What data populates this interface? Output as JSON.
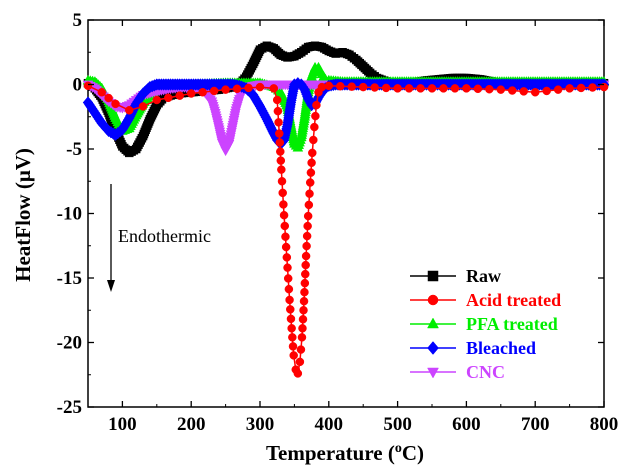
{
  "chart_data": {
    "type": "line",
    "xlabel_main": "Temperature (",
    "xlabel_sup": "o",
    "xlabel_tail": "C)",
    "ylabel": "HeatFlow (μV)",
    "xlim": [
      50,
      800
    ],
    "ylim": [
      -25,
      5
    ],
    "x_ticks": [
      100,
      200,
      300,
      400,
      500,
      600,
      700,
      800
    ],
    "y_ticks": [
      5,
      0,
      -5,
      -10,
      -15,
      -20,
      -25
    ],
    "annotation": "Endothermic",
    "legend_position": "bottom-right",
    "series": [
      {
        "name": "Raw",
        "color": "#000000",
        "marker": "square",
        "x": [
          50,
          60,
          70,
          80,
          90,
          100,
          110,
          120,
          130,
          140,
          150,
          160,
          180,
          200,
          220,
          240,
          260,
          270,
          280,
          290,
          300,
          310,
          320,
          330,
          340,
          350,
          360,
          370,
          380,
          390,
          400,
          410,
          420,
          430,
          440,
          450,
          460,
          470,
          480,
          490,
          500,
          520,
          540,
          560,
          580,
          600,
          620,
          640,
          660,
          680,
          700,
          720,
          740,
          760,
          780,
          800
        ],
        "y": [
          0.1,
          -0.3,
          -1.0,
          -2.2,
          -3.6,
          -4.8,
          -5.3,
          -5.0,
          -4.0,
          -2.7,
          -1.6,
          -1.0,
          -0.7,
          -0.6,
          -0.5,
          -0.4,
          -0.2,
          0.0,
          0.6,
          1.6,
          2.7,
          3.0,
          2.8,
          2.3,
          2.1,
          2.2,
          2.5,
          2.9,
          3.0,
          2.9,
          2.6,
          2.4,
          2.5,
          2.3,
          1.9,
          1.4,
          0.9,
          0.5,
          0.3,
          0.1,
          0.0,
          0.1,
          0.3,
          0.4,
          0.5,
          0.5,
          0.4,
          0.2,
          0.0,
          0.0,
          0.1,
          0.1,
          0.1,
          0.1,
          0.1,
          0.1
        ]
      },
      {
        "name": "Acid treated",
        "color": "#ff0000",
        "marker": "circle",
        "x": [
          50,
          70,
          90,
          110,
          130,
          150,
          200,
          250,
          300,
          320,
          325,
          328,
          331,
          334,
          337,
          340,
          343,
          346,
          349,
          352,
          355,
          358,
          361,
          364,
          367,
          370,
          373,
          376,
          379,
          382,
          385,
          390,
          400,
          450,
          500,
          550,
          600,
          650,
          700,
          750,
          800
        ],
        "y": [
          -0.1,
          -0.6,
          -1.5,
          -2.0,
          -1.7,
          -1.2,
          -0.7,
          -0.4,
          -0.2,
          -0.3,
          -1.2,
          -3.8,
          -6.6,
          -9.3,
          -11.8,
          -14.2,
          -16.7,
          -18.9,
          -21.0,
          -22.1,
          -22.4,
          -21.5,
          -19.6,
          -16.8,
          -13.3,
          -10.2,
          -7.6,
          -5.3,
          -3.3,
          -1.6,
          -0.6,
          -0.2,
          -0.1,
          -0.2,
          -0.3,
          -0.3,
          -0.3,
          -0.4,
          -0.6,
          -0.3,
          -0.2
        ]
      },
      {
        "name": "PFA treated",
        "color": "#00ee00",
        "marker": "triangle-up",
        "x": [
          50,
          60,
          70,
          80,
          90,
          100,
          110,
          120,
          130,
          140,
          150,
          160,
          180,
          200,
          250,
          300,
          320,
          330,
          340,
          345,
          350,
          355,
          360,
          365,
          370,
          375,
          380,
          385,
          390,
          395,
          400,
          420,
          450,
          500,
          600,
          700,
          800
        ],
        "y": [
          0.3,
          0.2,
          -0.3,
          -1.3,
          -2.6,
          -3.6,
          -3.4,
          -2.4,
          -1.5,
          -0.8,
          -0.4,
          -0.2,
          -0.1,
          0.0,
          0.1,
          0.1,
          -0.2,
          -0.6,
          -1.8,
          -3.2,
          -4.6,
          -4.9,
          -4.1,
          -2.5,
          -0.6,
          0.6,
          1.3,
          1.3,
          0.8,
          0.4,
          0.3,
          0.2,
          0.2,
          0.2,
          0.2,
          0.2,
          0.2
        ]
      },
      {
        "name": "Bleached",
        "color": "#0000ff",
        "marker": "diamond",
        "x": [
          50,
          60,
          70,
          80,
          90,
          100,
          110,
          120,
          130,
          140,
          150,
          160,
          170,
          180,
          200,
          220,
          240,
          250,
          260,
          270,
          280,
          290,
          300,
          310,
          320,
          325,
          330,
          335,
          340,
          345,
          350,
          355,
          360,
          365,
          370,
          375,
          380,
          385,
          390,
          395,
          400,
          410,
          420,
          450,
          500,
          600,
          700,
          800
        ],
        "y": [
          -1.4,
          -2.2,
          -3.0,
          -3.6,
          -3.9,
          -3.5,
          -2.6,
          -1.5,
          -0.7,
          -0.2,
          0.0,
          0.0,
          0.0,
          0.0,
          0.0,
          0.0,
          0.0,
          0.0,
          0.0,
          -0.1,
          -0.3,
          -0.8,
          -1.7,
          -2.7,
          -3.8,
          -4.3,
          -4.6,
          -4.3,
          -3.1,
          -1.4,
          0.0,
          0.1,
          0.0,
          -0.4,
          -1.1,
          -1.6,
          -1.5,
          -1.0,
          -0.6,
          -0.3,
          -0.1,
          0.0,
          0.0,
          0.0,
          0.0,
          0.0,
          0.0,
          0.0
        ]
      },
      {
        "name": "CNC",
        "color": "#cc44ff",
        "marker": "triangle-down",
        "x": [
          50,
          60,
          70,
          80,
          90,
          100,
          110,
          120,
          130,
          150,
          170,
          190,
          210,
          220,
          230,
          235,
          240,
          245,
          250,
          255,
          260,
          265,
          270,
          275,
          280,
          290,
          300,
          320,
          350,
          400,
          450,
          500,
          600,
          700,
          800
        ],
        "y": [
          0.0,
          -0.3,
          -0.8,
          -1.3,
          -1.7,
          -1.8,
          -1.6,
          -1.2,
          -0.8,
          -0.5,
          -0.3,
          -0.2,
          -0.3,
          -0.6,
          -1.3,
          -2.2,
          -3.3,
          -4.5,
          -5.1,
          -4.6,
          -3.3,
          -2.0,
          -1.1,
          -0.5,
          -0.2,
          -0.1,
          0.0,
          0.0,
          0.0,
          0.0,
          0.0,
          0.0,
          0.0,
          0.0,
          0.0
        ]
      }
    ]
  }
}
